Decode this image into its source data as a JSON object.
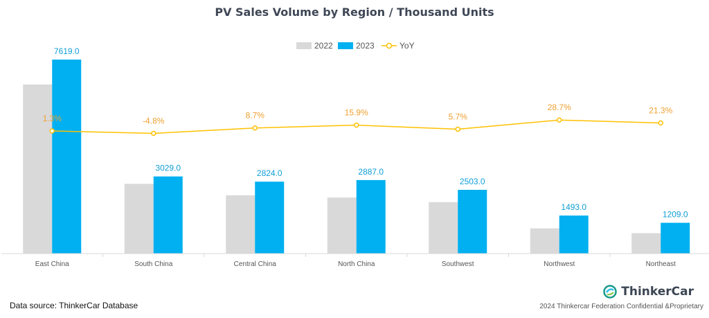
{
  "chart_data": {
    "type": "bar",
    "title": "PV Sales Volume by Region / Thousand Units",
    "categories": [
      "East China",
      "South China",
      "Central China",
      "North China",
      "Southwest",
      "Northwest",
      "Northeast"
    ],
    "series": [
      {
        "name": "2022",
        "kind": "bar",
        "color": "#d9d9d9",
        "values": [
          6640,
          2740,
          2290,
          2200,
          2020,
          990,
          800
        ]
      },
      {
        "name": "2023",
        "kind": "bar",
        "color": "#00b0f0",
        "values": [
          7619.0,
          3029.0,
          2824.0,
          2887.0,
          2503.0,
          1493.0,
          1209.0
        ],
        "labels": [
          "7619.0",
          "3029.0",
          "2824.0",
          "2887.0",
          "2503.0",
          "1493.0",
          "1209.0"
        ]
      },
      {
        "name": "YoY",
        "kind": "line",
        "color": "#ffc000",
        "values": [
          1.3,
          -4.8,
          8.7,
          15.9,
          5.7,
          28.7,
          21.3
        ],
        "labels": [
          "1.3%",
          "-4.8%",
          "8.7%",
          "15.9%",
          "5.7%",
          "28.7%",
          "21.3%"
        ]
      }
    ],
    "ylim": [
      0,
      8000
    ],
    "legend_position": "top-center",
    "grid": false
  },
  "source": "Data source: ThinkerCar Database",
  "brand": "ThinkerCar",
  "footer_note": "2024 Thinkercar Federation Confidential &Proprietary",
  "colors": {
    "bar_2022": "#d9d9d9",
    "bar_2023": "#00b0f0",
    "yoy_line": "#ffc000",
    "value_label": "#0f9ed5",
    "yoy_label": "#f0a030"
  }
}
